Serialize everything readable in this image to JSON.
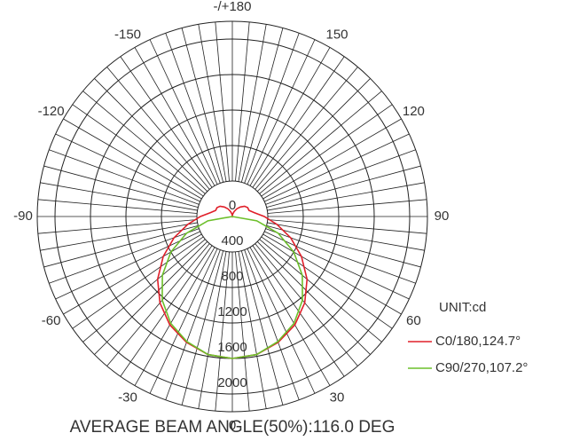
{
  "chart_data": {
    "type": "polar",
    "rlim": [
      0,
      2200
    ],
    "rticks": [
      0,
      400,
      800,
      1200,
      1600,
      2000
    ],
    "theta_ticks": [
      -150,
      -120,
      -90,
      -60,
      -30,
      0,
      30,
      60,
      90,
      120,
      150,
      {
        "value": 180,
        "label": "-/+180"
      }
    ],
    "unit_label": "UNIT:cd",
    "annotation": "AVERAGE BEAM ANGLE(50%):116.0 DEG",
    "series": [
      {
        "name": "C0/180,124.7°",
        "color": "#e0202a",
        "x": [
          -180,
          -170,
          -160,
          -150,
          -140,
          -130,
          -120,
          -110,
          -100,
          -90,
          -80,
          -70,
          -60,
          -50,
          -40,
          -30,
          -20,
          -10,
          0,
          10,
          20,
          30,
          40,
          50,
          60,
          70,
          80,
          90,
          100,
          110,
          120,
          130,
          140,
          150,
          160,
          170,
          180
        ],
        "values": [
          10,
          30,
          60,
          100,
          140,
          180,
          200,
          200,
          250,
          360,
          510,
          700,
          900,
          1100,
          1270,
          1410,
          1510,
          1580,
          1600,
          1580,
          1510,
          1410,
          1270,
          1100,
          900,
          700,
          510,
          360,
          250,
          200,
          200,
          180,
          140,
          100,
          60,
          30,
          10
        ]
      },
      {
        "name": "C90/270,107.2°",
        "color": "#6cbf2a",
        "x": [
          -90,
          -80,
          -70,
          -60,
          -50,
          -40,
          -30,
          -20,
          -10,
          0,
          10,
          20,
          30,
          40,
          50,
          60,
          70,
          80,
          90
        ],
        "values": [
          0,
          280,
          550,
          800,
          1030,
          1230,
          1390,
          1500,
          1580,
          1600,
          1580,
          1500,
          1390,
          1230,
          1030,
          800,
          550,
          280,
          0
        ]
      }
    ]
  }
}
